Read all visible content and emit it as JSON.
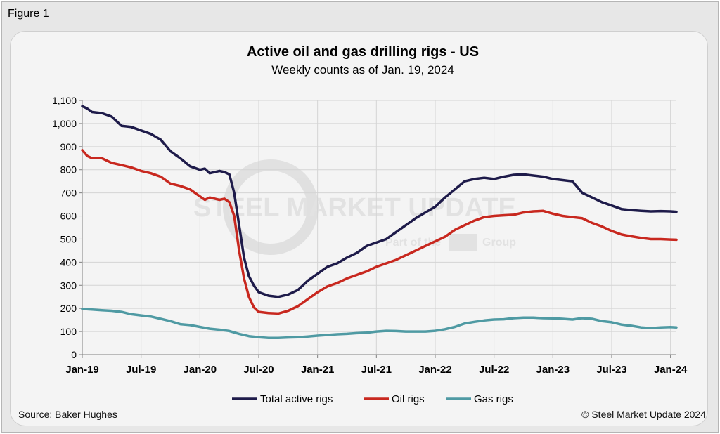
{
  "figure_label": "Figure 1",
  "source": "Source: Baker Hughes",
  "copyright": "© Steel Market Update 2024",
  "watermark": {
    "line1": "STEEL MARKET UPDATE",
    "line2a": "Part of the",
    "line2b": "Group"
  },
  "colors": {
    "total": "#1e1b4a",
    "oil": "#c8281f",
    "gas": "#4f9aa3",
    "grid": "#d4d4d4",
    "axis": "#7f7f7f"
  },
  "chart_data": {
    "type": "line",
    "title": "Active oil and gas drilling rigs - US",
    "subtitle": "Weekly counts as of Jan. 19, 2024",
    "xlabel": "",
    "ylabel": "",
    "ylim": [
      0,
      1100
    ],
    "yticks": [
      0,
      100,
      200,
      300,
      400,
      500,
      600,
      700,
      800,
      900,
      1000,
      1100
    ],
    "ytick_labels": [
      "0",
      "100",
      "200",
      "300",
      "400",
      "500",
      "600",
      "700",
      "800",
      "900",
      "1,000",
      "1,100"
    ],
    "xlim": [
      0,
      60.6
    ],
    "xticks": [
      0,
      6,
      12,
      18,
      24,
      30,
      36,
      42,
      48,
      54,
      60
    ],
    "xtick_labels": [
      "Jan-19",
      "Jul-19",
      "Jan-20",
      "Jul-20",
      "Jan-21",
      "Jul-21",
      "Jan-22",
      "Jul-22",
      "Jan-23",
      "Jul-23",
      "Jan-24"
    ],
    "x_unit": "months since Jan 2019",
    "legend": [
      "Total active rigs",
      "Oil rigs",
      "Gas rigs"
    ],
    "legend_position": "bottom",
    "series": [
      {
        "name": "Total active rigs",
        "x": [
          0,
          0.5,
          1,
          2,
          3,
          3.5,
          4,
          5,
          6,
          7,
          8,
          9,
          10,
          11,
          12,
          12.5,
          13,
          14,
          14.5,
          15,
          15.5,
          16,
          16.5,
          17,
          17.5,
          18,
          19,
          20,
          21,
          22,
          23,
          24,
          25,
          26,
          27,
          28,
          29,
          30,
          31,
          32,
          33,
          34,
          35,
          36,
          37,
          38,
          39,
          40,
          41,
          42,
          43,
          44,
          45,
          46,
          47,
          48,
          49,
          50,
          51,
          52,
          53,
          54,
          55,
          56,
          57,
          58,
          59,
          60,
          60.6
        ],
        "values": [
          1075,
          1065,
          1050,
          1045,
          1030,
          1010,
          990,
          985,
          970,
          955,
          930,
          880,
          850,
          815,
          800,
          805,
          785,
          795,
          790,
          780,
          700,
          560,
          420,
          340,
          300,
          270,
          255,
          250,
          260,
          280,
          320,
          350,
          380,
          395,
          420,
          440,
          470,
          485,
          500,
          530,
          560,
          590,
          615,
          640,
          680,
          715,
          750,
          760,
          765,
          760,
          770,
          778,
          780,
          775,
          770,
          760,
          755,
          750,
          700,
          680,
          660,
          645,
          630,
          625,
          622,
          620,
          621,
          620,
          618
        ]
      },
      {
        "name": "Oil rigs",
        "x": [
          0,
          0.5,
          1,
          2,
          3,
          4,
          5,
          6,
          7,
          8,
          9,
          10,
          11,
          12,
          12.5,
          13,
          14,
          14.5,
          15,
          15.5,
          16,
          16.5,
          17,
          17.5,
          18,
          19,
          20,
          21,
          22,
          23,
          24,
          25,
          26,
          27,
          28,
          29,
          30,
          31,
          32,
          33,
          34,
          35,
          36,
          37,
          38,
          39,
          40,
          41,
          42,
          43,
          44,
          45,
          46,
          47,
          48,
          49,
          50,
          51,
          52,
          53,
          54,
          55,
          56,
          57,
          58,
          59,
          60,
          60.6
        ],
        "values": [
          885,
          860,
          850,
          850,
          830,
          820,
          810,
          795,
          785,
          770,
          740,
          730,
          715,
          685,
          670,
          680,
          670,
          675,
          660,
          600,
          450,
          330,
          250,
          205,
          185,
          180,
          178,
          190,
          210,
          240,
          270,
          295,
          310,
          330,
          345,
          360,
          380,
          395,
          410,
          430,
          450,
          470,
          490,
          510,
          540,
          560,
          580,
          595,
          600,
          603,
          605,
          615,
          620,
          622,
          610,
          600,
          595,
          590,
          570,
          555,
          535,
          520,
          512,
          505,
          500,
          500,
          498,
          497
        ]
      },
      {
        "name": "Gas rigs",
        "x": [
          0,
          1,
          2,
          3,
          4,
          5,
          6,
          7,
          8,
          9,
          10,
          11,
          12,
          13,
          14,
          15,
          16,
          17,
          18,
          19,
          20,
          21,
          22,
          23,
          24,
          25,
          26,
          27,
          28,
          29,
          30,
          31,
          32,
          33,
          34,
          35,
          36,
          37,
          38,
          39,
          40,
          41,
          42,
          43,
          44,
          45,
          46,
          47,
          48,
          49,
          50,
          51,
          52,
          53,
          54,
          55,
          56,
          57,
          58,
          59,
          60,
          60.6
        ],
        "values": [
          198,
          195,
          192,
          190,
          185,
          175,
          170,
          165,
          155,
          145,
          132,
          128,
          120,
          112,
          108,
          102,
          90,
          80,
          75,
          72,
          72,
          74,
          75,
          78,
          82,
          85,
          88,
          90,
          93,
          95,
          100,
          103,
          102,
          100,
          100,
          100,
          103,
          110,
          120,
          135,
          142,
          148,
          152,
          153,
          158,
          160,
          160,
          158,
          157,
          155,
          152,
          158,
          155,
          145,
          140,
          130,
          125,
          118,
          115,
          118,
          119,
          118
        ]
      }
    ]
  }
}
